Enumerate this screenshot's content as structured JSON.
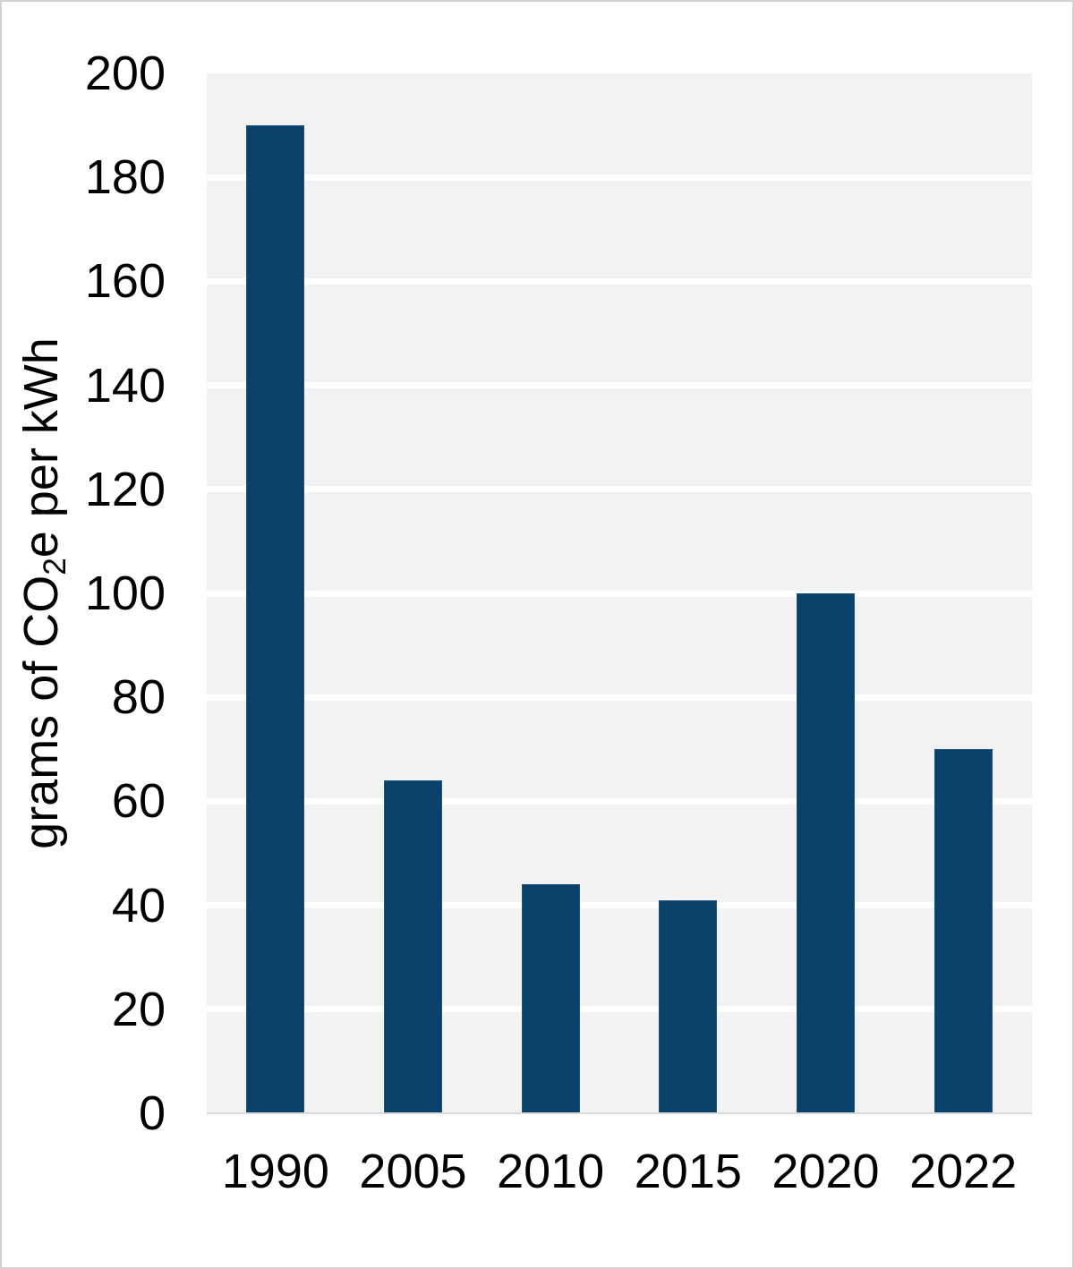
{
  "chart_data": {
    "type": "bar",
    "categories": [
      "1990",
      "2005",
      "2010",
      "2015",
      "2020",
      "2022"
    ],
    "values": [
      190,
      64,
      44,
      41,
      100,
      70
    ],
    "title": "",
    "xlabel": "",
    "ylabel": "grams of CO₂e per kWh",
    "ylabel_parts": {
      "pre": "grams of CO",
      "sub": "2",
      "post": "e per kWh"
    },
    "ylim": [
      0,
      200
    ],
    "ytick_step": 20,
    "yticks": [
      0,
      20,
      40,
      60,
      80,
      100,
      120,
      140,
      160,
      180,
      200
    ],
    "grid": true,
    "legend": false,
    "colors": {
      "bar_fill": "#08426A",
      "bar_outline": "#54789a",
      "plot_background": "#F2F2F2",
      "gridline": "#FFFFFF",
      "axis_line": "#D9D9D9",
      "text": "#000000",
      "page_background": "#FFFFFF",
      "page_border": "#D2D2D2"
    }
  }
}
